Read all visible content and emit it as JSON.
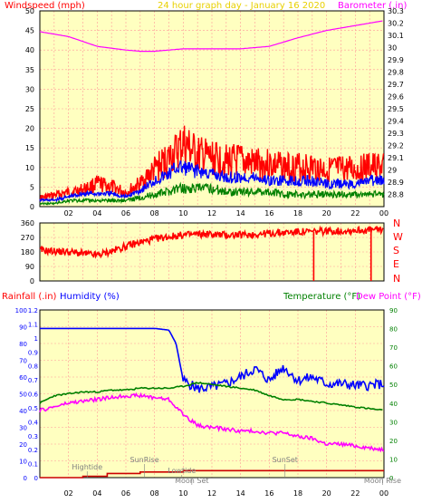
{
  "colors": {
    "plot_bg": "#ffffc0",
    "grid": "#ff9999",
    "frame": "#000000",
    "wind_speed": "#ff0000",
    "wind_avg": "#0000ff",
    "wind_base": "#008000",
    "barometer": "#ff00ff",
    "direction": "#ff0000",
    "humidity": "#0000ff",
    "temperature": "#008000",
    "dew_point": "#ff00ff",
    "rainfall": "#cc0000",
    "title_red": "#ff0000",
    "title_yellow": "#e8d000",
    "axis_blue": "#0000ff",
    "axis_green": "#008000",
    "axis_magenta": "#ff00ff",
    "tick_text": "#000000",
    "event_text": "#808080"
  },
  "header": {
    "windspeed_label": "Windspeed (mph)",
    "title": "24 hour graph day - January 16 2020",
    "barometer_label": "Barometer (.in)"
  },
  "bottom_header": {
    "rainfall_label": "Rainfall (.in)",
    "humidity_label": "Humidity (%)",
    "temperature_label": "Temperature (°F)",
    "dewpoint_label": "Dew Point (°F)"
  },
  "compass": [
    "N",
    "W",
    "S",
    "E",
    "N"
  ],
  "x_ticks": [
    "02",
    "04",
    "06",
    "08",
    "10",
    "12",
    "14",
    "16",
    "18",
    "20",
    "22",
    "00"
  ],
  "events": [
    {
      "label": "Hightide",
      "time": 3.3,
      "level": 1
    },
    {
      "label": "SunRise",
      "time": 7.3,
      "level": 2
    },
    {
      "label": "Lowtide",
      "time": 9.9,
      "level": 0
    },
    {
      "label": "Moon Set",
      "time": 10.6,
      "level": -1
    },
    {
      "label": "SunSet",
      "time": 17.1,
      "level": 2
    },
    {
      "label": "Moon Rise",
      "time": 23.9,
      "level": -1
    }
  ],
  "chart_data": [
    {
      "type": "line",
      "title": "24 hour graph day - January 16 2020",
      "xlabel": "",
      "ylabel": "Windspeed (mph)",
      "y2label": "Barometer (.in)",
      "xlim": [
        0,
        24
      ],
      "ylim": [
        0,
        50
      ],
      "y2lim": [
        28.7,
        30.3
      ],
      "yticks": [
        0,
        5,
        10,
        15,
        20,
        25,
        30,
        35,
        40,
        45,
        50
      ],
      "y2ticks": [
        "28.8",
        "28.9",
        "29",
        "29.1",
        "29.2",
        "29.3",
        "29.4",
        "29.5",
        "29.6",
        "29.7",
        "29.8",
        "29.9",
        "30",
        "30.1",
        "30.2",
        "30.3"
      ],
      "series": [
        {
          "name": "Windspeed (mph)",
          "x": [
            0,
            1,
            2,
            3,
            4,
            5,
            6,
            7,
            8,
            9,
            9.5,
            10,
            11,
            12,
            13,
            14,
            15,
            16,
            17,
            18,
            19,
            20,
            21,
            22,
            23,
            24
          ],
          "values": [
            3,
            4,
            5,
            6,
            8,
            7,
            5,
            8,
            13,
            17,
            19,
            22,
            18,
            17,
            16,
            16,
            15,
            15,
            14,
            14,
            14,
            13,
            13,
            13,
            14,
            14
          ]
        },
        {
          "name": "",
          "x": [
            0,
            1,
            2,
            3,
            4,
            5,
            6,
            7,
            8,
            9,
            9.5,
            10,
            11,
            12,
            13,
            14,
            15,
            16,
            17,
            18,
            19,
            20,
            21,
            22,
            23,
            24
          ],
          "values": [
            2,
            2,
            3,
            4,
            4,
            4,
            3,
            5,
            8,
            10,
            12,
            12,
            11,
            10,
            9,
            9,
            9,
            8,
            8,
            8,
            8,
            7,
            7,
            7,
            8,
            8
          ]
        },
        {
          "name": "",
          "x": [
            0,
            1,
            2,
            3,
            4,
            5,
            6,
            7,
            8,
            9,
            9.5,
            10,
            11,
            12,
            13,
            14,
            15,
            16,
            17,
            18,
            19,
            20,
            21,
            22,
            23,
            24
          ],
          "values": [
            1,
            1,
            2,
            2,
            2,
            2,
            2,
            3,
            4,
            5,
            6,
            6,
            6,
            6,
            5,
            5,
            5,
            5,
            4,
            4,
            4,
            4,
            4,
            4,
            4,
            4
          ]
        },
        {
          "name": "Barometer (.in)",
          "axis": "right",
          "x": [
            0,
            2,
            4,
            6,
            7,
            8,
            9,
            10,
            12,
            14,
            16,
            18,
            20,
            22,
            24
          ],
          "values": [
            30.13,
            30.09,
            30.01,
            29.98,
            29.97,
            29.97,
            29.98,
            29.99,
            29.99,
            29.99,
            30.01,
            30.08,
            30.14,
            30.18,
            30.22
          ]
        }
      ]
    },
    {
      "type": "line",
      "title": "",
      "xlabel": "",
      "ylabel": "",
      "xlim": [
        0,
        24
      ],
      "ylim": [
        0,
        360
      ],
      "yticks": [
        0,
        90,
        180,
        270,
        360
      ],
      "series": [
        {
          "name": "",
          "x": [
            0,
            1,
            2,
            3,
            4,
            5,
            6,
            7,
            8,
            9,
            10,
            11,
            12,
            13,
            14,
            15,
            16,
            17,
            18,
            19,
            20,
            21,
            22,
            23,
            24
          ],
          "values": [
            190,
            185,
            180,
            170,
            160,
            185,
            215,
            240,
            260,
            275,
            285,
            290,
            290,
            285,
            285,
            290,
            295,
            300,
            305,
            305,
            310,
            310,
            315,
            315,
            320
          ]
        }
      ],
      "spikes": [
        {
          "x": 19.1,
          "value": 0
        },
        {
          "x": 23.1,
          "value": 0
        }
      ]
    },
    {
      "type": "line",
      "title": "",
      "xlabel": "",
      "ylabel": "Humidity (%)",
      "y2label": "Temperature (°F)",
      "xlim": [
        0,
        24
      ],
      "ylim": [
        0,
        100
      ],
      "yticks": [
        0,
        10,
        20,
        30,
        40,
        50,
        60,
        70,
        80,
        90,
        100
      ],
      "y3lim": [
        0,
        1.2
      ],
      "y3ticks": [
        "0",
        "0.1",
        "0.2",
        "0.3",
        "0.4",
        "0.5",
        "0.6",
        "0.7",
        "0.8",
        "0.9",
        "1",
        "1.1",
        "1.2"
      ],
      "y2lim": [
        0,
        90
      ],
      "y2ticks": [
        0,
        10,
        20,
        30,
        40,
        50,
        60,
        70,
        80,
        90
      ],
      "series": [
        {
          "name": "Humidity (%)",
          "x": [
            0,
            1,
            2,
            3,
            4,
            5,
            6,
            7,
            8,
            9,
            9.5,
            10,
            11,
            12,
            13,
            14,
            15,
            16,
            17,
            18,
            19,
            20,
            21,
            22,
            23,
            24
          ],
          "values": [
            89,
            89,
            89,
            89,
            89,
            89,
            89,
            89,
            89,
            88,
            80,
            58,
            53,
            54,
            56,
            60,
            65,
            58,
            66,
            58,
            60,
            56,
            56,
            55,
            55,
            56
          ]
        },
        {
          "name": "Temperature (°F)",
          "axis": "right",
          "x": [
            0,
            1,
            2,
            3,
            4,
            5,
            6,
            7,
            8,
            9,
            10,
            11,
            12,
            13,
            14,
            15,
            16,
            17,
            18,
            19,
            20,
            21,
            22,
            23,
            24
          ],
          "values": [
            40,
            44,
            45,
            46,
            46,
            47,
            47,
            48,
            48,
            48,
            49,
            51,
            50,
            49,
            48,
            47,
            44,
            42,
            42,
            41,
            40,
            39,
            38,
            37,
            36
          ]
        },
        {
          "name": "Dew Point (°F)",
          "axis": "right",
          "x": [
            0,
            1,
            2,
            3,
            4,
            5,
            6,
            7,
            8,
            9,
            10,
            11,
            12,
            13,
            14,
            15,
            16,
            17,
            18,
            19,
            20,
            21,
            22,
            23,
            24
          ],
          "values": [
            36,
            38,
            40,
            41,
            42,
            43,
            44,
            44,
            43,
            42,
            34,
            28,
            27,
            26,
            25,
            25,
            24,
            24,
            22,
            21,
            18,
            18,
            17,
            16,
            15
          ]
        },
        {
          "name": "Rainfall (.in)",
          "axis": "rain",
          "x": [
            0,
            2.8,
            3.0,
            4.5,
            4.7,
            7.0,
            10.0,
            24
          ],
          "values": [
            0,
            0,
            0.01,
            0.01,
            0.03,
            0.04,
            0.05,
            0.05
          ]
        }
      ]
    }
  ]
}
